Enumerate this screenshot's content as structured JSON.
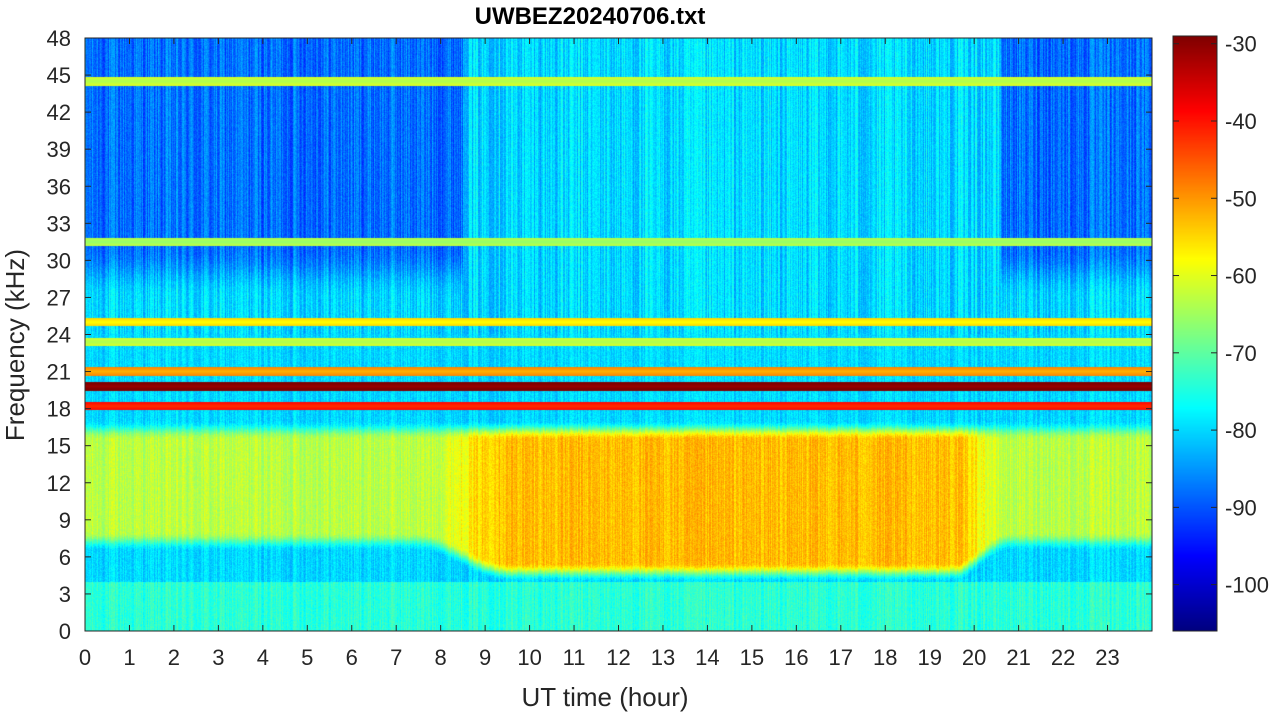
{
  "chart_data": {
    "type": "heatmap",
    "title": "UWBEZ20240706.txt",
    "xlabel": "UT time (hour)",
    "ylabel": "Frequency (kHz)",
    "xlim": [
      0,
      24
    ],
    "ylim": [
      0,
      48
    ],
    "x_ticks": [
      "0",
      "1",
      "2",
      "3",
      "4",
      "5",
      "6",
      "7",
      "8",
      "9",
      "10",
      "11",
      "12",
      "13",
      "14",
      "15",
      "16",
      "17",
      "18",
      "19",
      "20",
      "21",
      "22",
      "23"
    ],
    "y_ticks": [
      "0",
      "3",
      "6",
      "9",
      "12",
      "15",
      "18",
      "21",
      "24",
      "27",
      "30",
      "33",
      "36",
      "39",
      "42",
      "45",
      "48"
    ],
    "colorbar": {
      "colormap": "jet",
      "range": [
        -106,
        -29
      ],
      "ticks": [
        "-30",
        "-40",
        "-50",
        "-60",
        "-70",
        "-80",
        "-90",
        "-100"
      ]
    },
    "features": {
      "background_dbm": -80,
      "strong_lines_khz": [
        {
          "freq": 19.8,
          "dbm": -31
        },
        {
          "freq": 18.2,
          "dbm": -42
        }
      ],
      "weak_lines_khz": [
        {
          "freq": 25.0,
          "dbm": -58
        },
        {
          "freq": 23.4,
          "dbm": -64
        },
        {
          "freq": 21.0,
          "dbm": -52
        },
        {
          "freq": 44.5,
          "dbm": -64
        },
        {
          "freq": 31.5,
          "dbm": -66
        }
      ],
      "daytime_band": {
        "hours": [
          9,
          20
        ],
        "freq_khz": [
          5,
          16
        ],
        "dbm": -53
      },
      "night_band_dbm": -63,
      "quiet_high_freq": {
        "hours": [
          [
            0,
            8.5
          ],
          [
            20.6,
            24
          ]
        ],
        "freq_khz": [
          27,
          48
        ],
        "dbm": -88
      }
    }
  }
}
